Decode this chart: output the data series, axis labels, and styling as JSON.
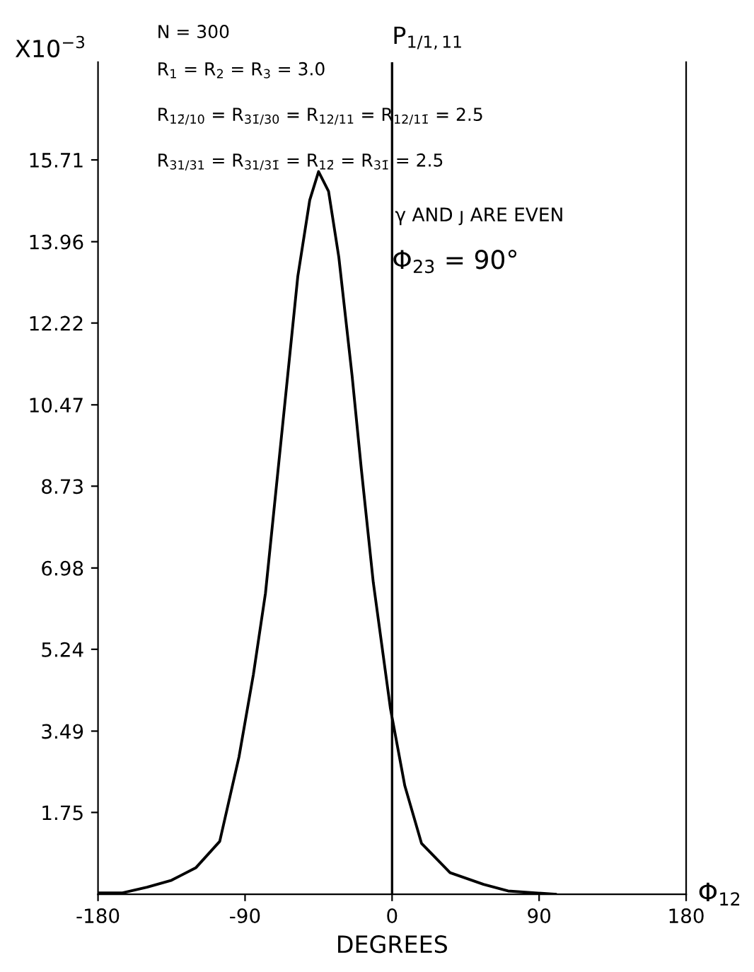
{
  "chart_data": {
    "type": "line",
    "xlabel": "DEGREES",
    "ylabel": "X10$^{−3}$",
    "x": [
      -180,
      -165,
      -150,
      -135,
      -120,
      -105.5,
      -93.7,
      -84.9,
      -77.5,
      -69.2,
      -57.7,
      -50.4,
      -45,
      -38.9,
      -32.6,
      -24.5,
      -18.8,
      -11.5,
      -1,
      7.8,
      18,
      35.5,
      56,
      71,
      100
    ],
    "series": [
      {
        "color": "#000000",
        "values": [
          0.03,
          0.03,
          0.15,
          0.3,
          0.57,
          1.13,
          2.94,
          4.7,
          6.44,
          9.28,
          13.22,
          14.85,
          15.46,
          15.04,
          13.63,
          11.1,
          9.09,
          6.67,
          3.97,
          2.32,
          1.09,
          0.46,
          0.21,
          0.07,
          0
        ]
      }
    ],
    "xlim": [
      -180,
      180
    ],
    "xticks": [
      -180,
      -90,
      0,
      90,
      180
    ],
    "ylim": [
      0,
      17.8
    ],
    "yticks": [
      {
        "value": 1.75,
        "label": "1.75"
      },
      {
        "value": 3.49,
        "label": "3.49"
      },
      {
        "value": 5.24,
        "label": "5.24"
      },
      {
        "value": 6.98,
        "label": "6.98"
      },
      {
        "value": 8.73,
        "label": "8.73"
      },
      {
        "value": 10.47,
        "label": "10.47"
      },
      {
        "value": 12.22,
        "label": "12.22"
      },
      {
        "value": 13.96,
        "label": "13.96"
      },
      {
        "value": 15.71,
        "label": "15.71"
      }
    ],
    "ref_lines": [
      {
        "axis": "x",
        "value": 0,
        "label": "P$_{1/1,11}$",
        "color": "#000000",
        "line_style": "solid"
      }
    ],
    "annotations": [
      "N = 300",
      "R$_{1}$ = R$_{2}$ = R$_{3}$ = 3.0",
      "R$_{12̄/10}$ = R$_{31̄/30}$ = R$_{12/11}$ = R$_{12/11̄}$ = 2.5",
      "R$_{31/31}$ = R$_{31/31̄}$ = R$_{12̄}$ = R$_{31̄}$ = 2.5",
      "γ AND ȷ ARE EVEN",
      "Φ$_{23}$ = 90°",
      "Φ$_{12}$"
    ],
    "grid": false,
    "legend": false,
    "marker": "none",
    "line_style": "solid"
  }
}
